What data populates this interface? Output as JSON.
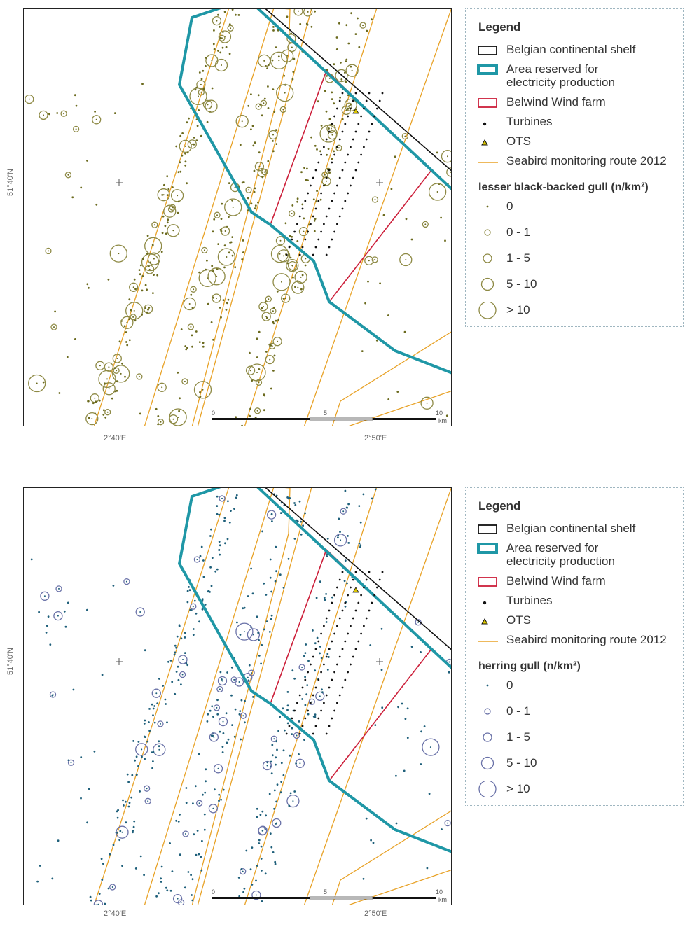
{
  "maps": [
    {
      "id": "top",
      "species_label": "lesser black-backed gull (n/km²)",
      "dot_color": "#6b6a1e",
      "circle_color": "#8e8a45"
    },
    {
      "id": "bottom",
      "species_label": "herring gull (n/km²)",
      "dot_color": "#1e5f7a",
      "circle_color": "#6a72a8"
    }
  ],
  "legend": {
    "title": "Legend",
    "items": {
      "shelf": "Belgian continental shelf",
      "area_line1": "Area reserved for",
      "area_line2": "electricity production",
      "windfarm": "Belwind Wind farm",
      "turbines": "Turbines",
      "ots": "OTS",
      "route": "Seabird monitoring route 2012"
    },
    "classes": [
      "0",
      "0 - 1",
      "1 - 5",
      "5 - 10",
      "> 10"
    ]
  },
  "axes": {
    "lat": "51°40'N",
    "lon_left": "2°40'E",
    "lon_right": "2°50'E"
  },
  "scale_bar": {
    "labels": [
      "0",
      "5",
      "10"
    ],
    "unit": "km"
  },
  "colors": {
    "shelf": "#111111",
    "area": "#1f97a6",
    "windfarm": "#cc1f3a",
    "route": "#e8a227",
    "turbine": "#111111",
    "ots": "#d9c400"
  }
}
